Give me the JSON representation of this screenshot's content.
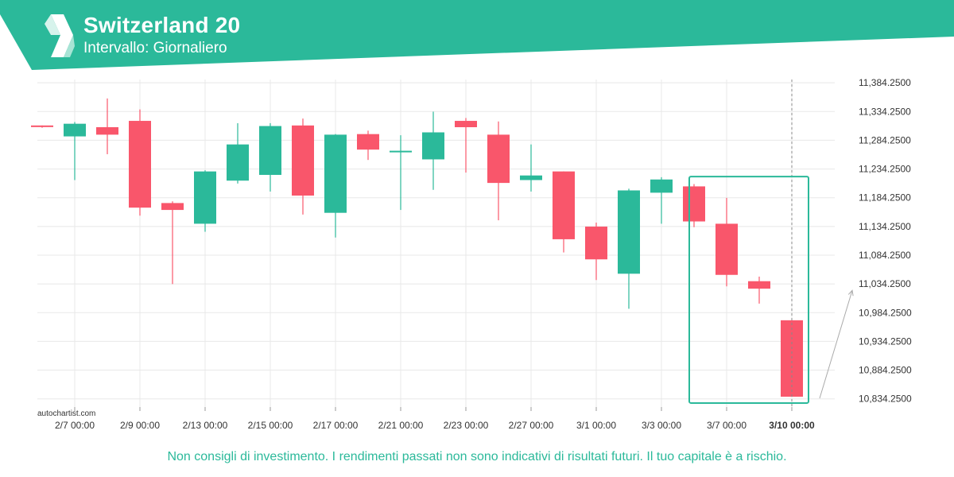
{
  "header": {
    "title": "Switzerland 20",
    "subtitle": "Intervallo: Giornaliero"
  },
  "watermark": "autochartist.com",
  "disclaimer": "Non consigli di investimento. I rendimenti passati non sono indicativi di risultati futuri. Il tuo capitale è a rischio.",
  "colors": {
    "brand": "#2bb99a",
    "up": "#2bb99a",
    "down": "#f9566b",
    "grid": "#e8e8e8",
    "text": "#333333"
  },
  "chart_data": {
    "type": "candlestick",
    "ylim": [
      10820,
      11390
    ],
    "y_ticks": [
      "11,384.2500",
      "11,334.2500",
      "11,284.2500",
      "11,234.2500",
      "11,184.2500",
      "11,134.2500",
      "11,084.2500",
      "11,034.2500",
      "10,984.2500",
      "10,934.2500",
      "10,884.2500",
      "10,834.2500"
    ],
    "y_tick_values": [
      11384.25,
      11334.25,
      11284.25,
      11234.25,
      11184.25,
      11134.25,
      11084.25,
      11034.25,
      10984.25,
      10934.25,
      10884.25,
      10834.25
    ],
    "x_ticks": [
      "2/7 00:00",
      "2/9 00:00",
      "2/13 00:00",
      "2/15 00:00",
      "2/17 00:00",
      "2/21 00:00",
      "2/23 00:00",
      "2/27 00:00",
      "3/1 00:00",
      "3/3 00:00",
      "3/7 00:00",
      "3/10 00:00"
    ],
    "x_tick_candle_index": [
      1,
      3,
      5,
      7,
      9,
      11,
      13,
      15,
      17,
      19,
      21,
      23
    ],
    "highlighted_x_tick": "3/10 00:00",
    "candles": [
      {
        "o": 11310,
        "h": 11310,
        "l": 11306,
        "c": 11308
      },
      {
        "o": 11291,
        "h": 11316,
        "l": 11215,
        "c": 11313
      },
      {
        "o": 11307,
        "h": 11357,
        "l": 11260,
        "c": 11294
      },
      {
        "o": 11318,
        "h": 11338,
        "l": 11153,
        "c": 11167
      },
      {
        "o": 11175,
        "h": 11178,
        "l": 11034,
        "c": 11163
      },
      {
        "o": 11139,
        "h": 11232,
        "l": 11125,
        "c": 11230
      },
      {
        "o": 11214,
        "h": 11314,
        "l": 11209,
        "c": 11277
      },
      {
        "o": 11224,
        "h": 11314,
        "l": 11195,
        "c": 11309
      },
      {
        "o": 11310,
        "h": 11322,
        "l": 11155,
        "c": 11188
      },
      {
        "o": 11158,
        "h": 11295,
        "l": 11115,
        "c": 11294
      },
      {
        "o": 11295,
        "h": 11301,
        "l": 11250,
        "c": 11268
      },
      {
        "o": 11264,
        "h": 11293,
        "l": 11163,
        "c": 11266
      },
      {
        "o": 11251,
        "h": 11334,
        "l": 11198,
        "c": 11298
      },
      {
        "o": 11318,
        "h": 11323,
        "l": 11228,
        "c": 11307
      },
      {
        "o": 11294,
        "h": 11317,
        "l": 11145,
        "c": 11210
      },
      {
        "o": 11215,
        "h": 11277,
        "l": 11195,
        "c": 11223
      },
      {
        "o": 11230,
        "h": 11230,
        "l": 11089,
        "c": 11112
      },
      {
        "o": 11134,
        "h": 11141,
        "l": 11041,
        "c": 11077
      },
      {
        "o": 11052,
        "h": 11200,
        "l": 10991,
        "c": 11197
      },
      {
        "o": 11193,
        "h": 11220,
        "l": 11139,
        "c": 11216
      },
      {
        "o": 11204,
        "h": 11208,
        "l": 11133,
        "c": 11143
      },
      {
        "o": 11139,
        "h": 11184,
        "l": 11030,
        "c": 11050
      },
      {
        "o": 11039,
        "h": 11047,
        "l": 11000,
        "c": 11026
      },
      {
        "o": 10971,
        "h": 10971,
        "l": 10838,
        "c": 10838
      }
    ],
    "pattern_box": {
      "from_candle": 20,
      "to_candle": 23,
      "y_top": 11221,
      "y_bottom": 10827
    },
    "projection_arrow": {
      "from_y": 10838,
      "to_y": 11023
    }
  }
}
